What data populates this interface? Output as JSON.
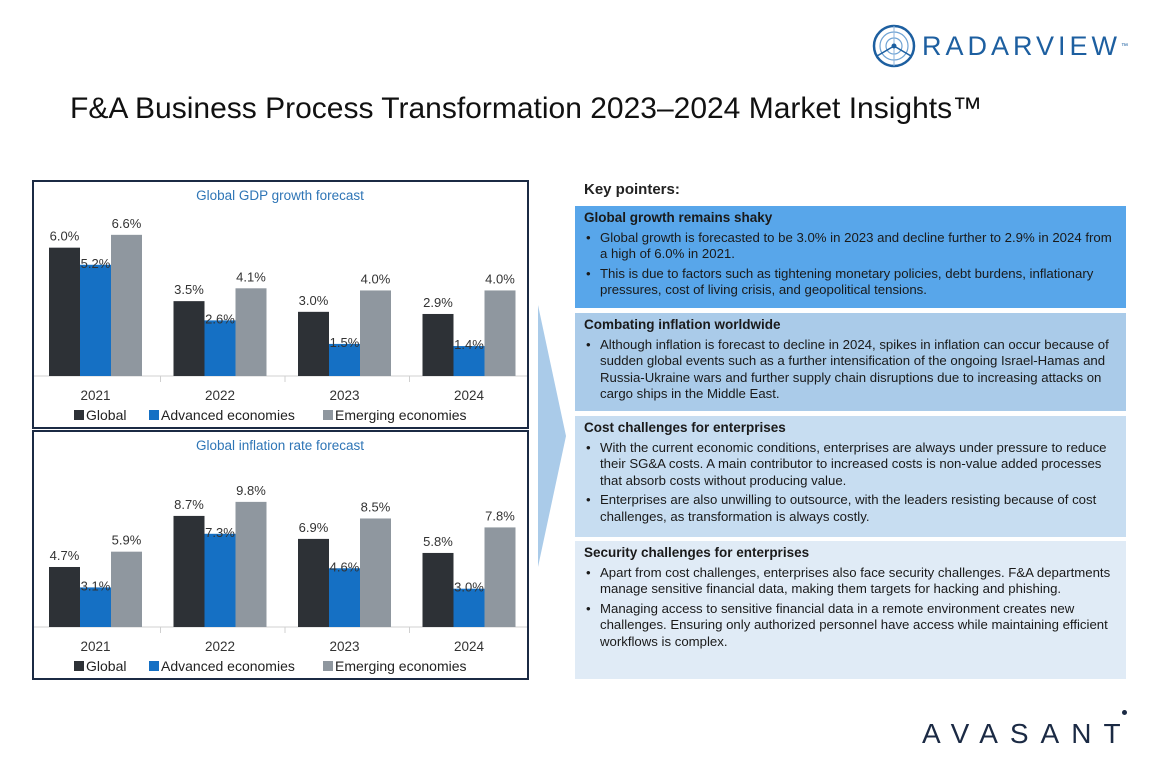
{
  "header": {
    "title": "F&A Business Process Transformation 2023–2024 Market Insights™",
    "logo_text": "RADARVIEW",
    "logo_tm": "™"
  },
  "footer": {
    "logo_text": "AVASANT"
  },
  "colors": {
    "global": "#2d3136",
    "advanced": "#1570c4",
    "emerging": "#8f979f",
    "title_blue": "#2e75b6"
  },
  "chart_data": [
    {
      "type": "bar",
      "title": "Global GDP growth forecast",
      "categories": [
        "2021",
        "2022",
        "2023",
        "2024"
      ],
      "series": [
        {
          "name": "Global",
          "values": [
            6.0,
            3.5,
            3.0,
            2.9
          ]
        },
        {
          "name": "Advanced economies",
          "values": [
            5.2,
            2.6,
            1.5,
            1.4
          ]
        },
        {
          "name": "Emerging economies",
          "values": [
            6.6,
            4.1,
            4.0,
            4.0
          ]
        }
      ],
      "value_suffix": "%",
      "ylim": [
        0,
        7.2
      ],
      "legend": "bottom",
      "grid": false
    },
    {
      "type": "bar",
      "title": "Global inflation rate forecast",
      "categories": [
        "2021",
        "2022",
        "2023",
        "2024"
      ],
      "series": [
        {
          "name": "Global",
          "values": [
            4.7,
            8.7,
            6.9,
            5.8
          ]
        },
        {
          "name": "Advanced economies",
          "values": [
            3.1,
            7.3,
            4.6,
            3.0
          ]
        },
        {
          "name": "Emerging economies",
          "values": [
            5.9,
            9.8,
            8.5,
            7.8
          ]
        }
      ],
      "value_suffix": "%",
      "ylim": [
        0,
        11.2
      ],
      "legend": "bottom",
      "grid": false
    }
  ],
  "pointers": {
    "heading": "Key pointers:",
    "sections": [
      {
        "title": "Global growth remains shaky",
        "bullets": [
          "Global growth is forecasted to be 3.0% in 2023 and decline further to 2.9% in 2024 from a high of 6.0% in 2021.",
          "This is due to factors such as tightening monetary policies, debt burdens, inflationary pressures, cost of living crisis, and geopolitical tensions."
        ]
      },
      {
        "title": "Combating inflation worldwide",
        "bullets": [
          "Although inflation is forecast to decline in 2024, spikes in inflation can occur because of sudden global events such as a further intensification of the ongoing Israel-Hamas and Russia-Ukraine wars and further supply chain disruptions due to increasing attacks on cargo ships in the Middle East."
        ]
      },
      {
        "title": "Cost challenges for enterprises",
        "bullets": [
          "With the current economic conditions, enterprises are always under pressure to reduce their SG&A costs. A main contributor to increased costs is non-value added processes that absorb costs without producing value.",
          "Enterprises are also unwilling to outsource, with the leaders resisting because of cost challenges, as transformation is always costly."
        ]
      },
      {
        "title": "Security challenges for enterprises",
        "bullets": [
          "Apart from cost challenges, enterprises also face security challenges. F&A departments manage sensitive financial data, making them targets for hacking and phishing.",
          "Managing access to sensitive financial data in a remote environment creates new challenges. Ensuring only authorized personnel have access while maintaining efficient workflows is complex."
        ]
      }
    ]
  }
}
